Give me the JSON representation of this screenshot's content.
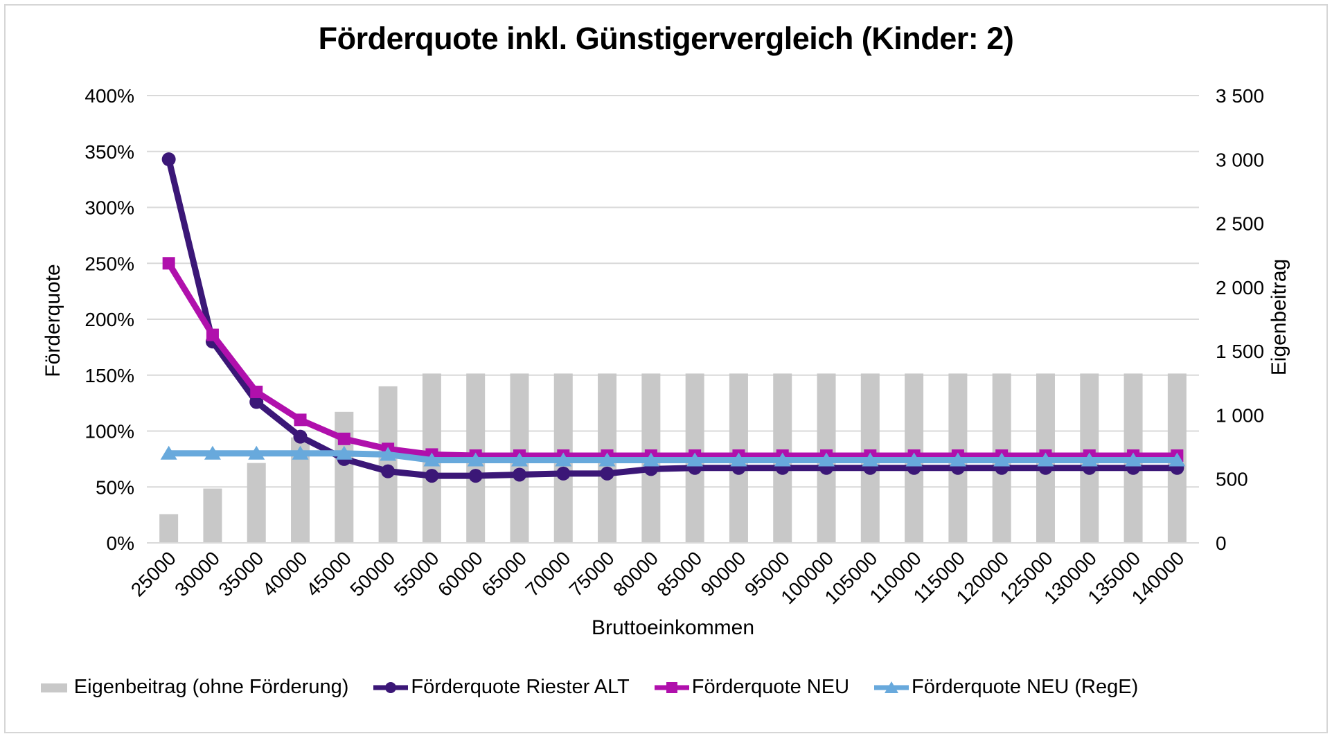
{
  "title": "Förderquote inkl. Günstigervergleich (Kinder: 2)",
  "chart_data": {
    "type": "combo-bar-line",
    "categories": [
      25000,
      30000,
      35000,
      40000,
      45000,
      50000,
      55000,
      60000,
      65000,
      70000,
      75000,
      80000,
      85000,
      90000,
      95000,
      100000,
      105000,
      110000,
      115000,
      120000,
      125000,
      130000,
      135000,
      140000
    ],
    "x_axis_title": "Bruttoeinkommen",
    "left_axis": {
      "title": "Förderquote",
      "min": 0,
      "max": 400,
      "step": 50,
      "tick_labels": [
        "0%",
        "50%",
        "100%",
        "150%",
        "200%",
        "250%",
        "300%",
        "350%",
        "400%"
      ]
    },
    "right_axis": {
      "title": "Eigenbeitrag",
      "min": 0,
      "max": 3500,
      "step": 500,
      "tick_labels": [
        "0",
        "500",
        "1 000",
        "1 500",
        "2 000",
        "2 500",
        "3 000",
        "3 500"
      ]
    },
    "grid": true,
    "grid_color": "#d9d9d9",
    "legend_position": "bottom",
    "series": [
      {
        "name": "Eigenbeitrag (ohne Förderung)",
        "type": "bar",
        "axis": "right",
        "color": "#c8c8c8",
        "values": [
          225,
          425,
          625,
          825,
          1025,
          1225,
          1325,
          1325,
          1325,
          1325,
          1325,
          1325,
          1325,
          1325,
          1325,
          1325,
          1325,
          1325,
          1325,
          1325,
          1325,
          1325,
          1325,
          1325
        ]
      },
      {
        "name": "Förderquote Riester ALT",
        "type": "line",
        "marker": "circle",
        "axis": "left",
        "color": "#3b1777",
        "values": [
          343,
          180,
          126,
          95,
          75,
          64,
          60,
          60,
          61,
          62,
          62,
          66,
          67,
          67,
          67,
          67,
          67,
          67,
          67,
          67,
          67,
          67,
          67,
          67
        ]
      },
      {
        "name": "Förderquote NEU",
        "type": "line",
        "marker": "square",
        "axis": "left",
        "color": "#b010ac",
        "values": [
          250,
          186,
          135,
          110,
          93,
          84,
          79,
          78,
          78,
          78,
          78,
          78,
          78,
          78,
          78,
          78,
          78,
          78,
          78,
          78,
          78,
          78,
          78,
          78
        ]
      },
      {
        "name": "Förderquote NEU (RegE)",
        "type": "line",
        "marker": "triangle",
        "axis": "left",
        "color": "#68a9dc",
        "values": [
          80,
          80,
          80,
          80,
          80,
          79,
          74,
          74,
          74,
          74,
          74,
          74,
          74,
          74,
          74,
          74,
          74,
          74,
          74,
          74,
          74,
          74,
          74,
          74
        ]
      }
    ]
  }
}
